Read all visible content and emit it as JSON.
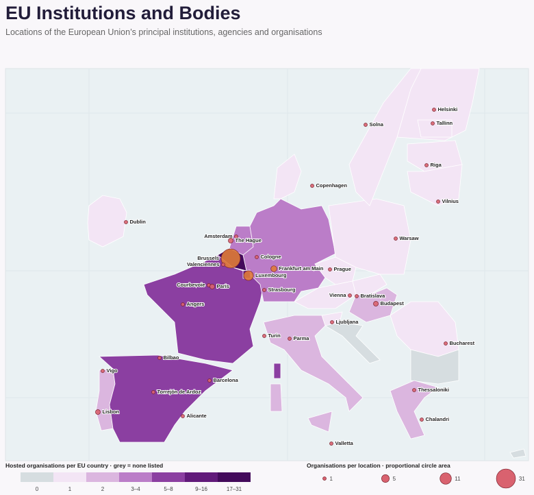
{
  "title": "EU Institutions and Bodies",
  "subtitle": "Locations of the European Union’s principal institutions, agencies and organisations",
  "color_legend": {
    "title": "Hosted organisations per EU country · grey = none listed",
    "classes": [
      {
        "label": "0",
        "color": "#d6dde0"
      },
      {
        "label": "1",
        "color": "#f3e5f5"
      },
      {
        "label": "2",
        "color": "#dbb6df"
      },
      {
        "label": "3–4",
        "color": "#bb7dc8"
      },
      {
        "label": "5–8",
        "color": "#8b3fa1"
      },
      {
        "label": "9–16",
        "color": "#611a7a"
      },
      {
        "label": "17–31",
        "color": "#430a5b"
      }
    ]
  },
  "size_legend": {
    "title": "Organisations per location · proportional circle area",
    "values": [
      1,
      5,
      11,
      31
    ]
  },
  "locations": [
    {
      "name": "Helsinki",
      "organisations": 1
    },
    {
      "name": "Solna",
      "organisations": 1
    },
    {
      "name": "Tallinn",
      "organisations": 1
    },
    {
      "name": "Riga",
      "organisations": 1
    },
    {
      "name": "Copenhagen",
      "organisations": 1
    },
    {
      "name": "Vilnius",
      "organisations": 1
    },
    {
      "name": "Dublin",
      "organisations": 1
    },
    {
      "name": "Warsaw",
      "organisations": 1
    },
    {
      "name": "Amsterdam",
      "organisations": 1
    },
    {
      "name": "The Hague",
      "organisations": 2
    },
    {
      "name": "Brussels",
      "organisations": 31
    },
    {
      "name": "Valenciennes",
      "organisations": 1
    },
    {
      "name": "Cologne",
      "organisations": 1
    },
    {
      "name": "Frankfurt am Main",
      "organisations": 3
    },
    {
      "name": "Luxembourg",
      "organisations": 8
    },
    {
      "name": "Prague",
      "organisations": 1
    },
    {
      "name": "Courbevoie",
      "organisations": 1
    },
    {
      "name": "Paris",
      "organisations": 2
    },
    {
      "name": "Strasbourg",
      "organisations": 1
    },
    {
      "name": "Vienna",
      "organisations": 1
    },
    {
      "name": "Bratislava",
      "organisations": 1
    },
    {
      "name": "Budapest",
      "organisations": 2
    },
    {
      "name": "Angers",
      "organisations": 1
    },
    {
      "name": "Ljubljana",
      "organisations": 1
    },
    {
      "name": "Turin",
      "organisations": 1
    },
    {
      "name": "Parma",
      "organisations": 1
    },
    {
      "name": "Bucharest",
      "organisations": 1
    },
    {
      "name": "Bilbao",
      "organisations": 1
    },
    {
      "name": "Vigo",
      "organisations": 1
    },
    {
      "name": "Barcelona",
      "organisations": 1
    },
    {
      "name": "Torrejón de Ardoz",
      "organisations": 1
    },
    {
      "name": "Thessaloniki",
      "organisations": 1
    },
    {
      "name": "Lisbon",
      "organisations": 2
    },
    {
      "name": "Alicante",
      "organisations": 1
    },
    {
      "name": "Chalandri",
      "organisations": 1
    },
    {
      "name": "Valletta",
      "organisations": 1
    }
  ]
}
